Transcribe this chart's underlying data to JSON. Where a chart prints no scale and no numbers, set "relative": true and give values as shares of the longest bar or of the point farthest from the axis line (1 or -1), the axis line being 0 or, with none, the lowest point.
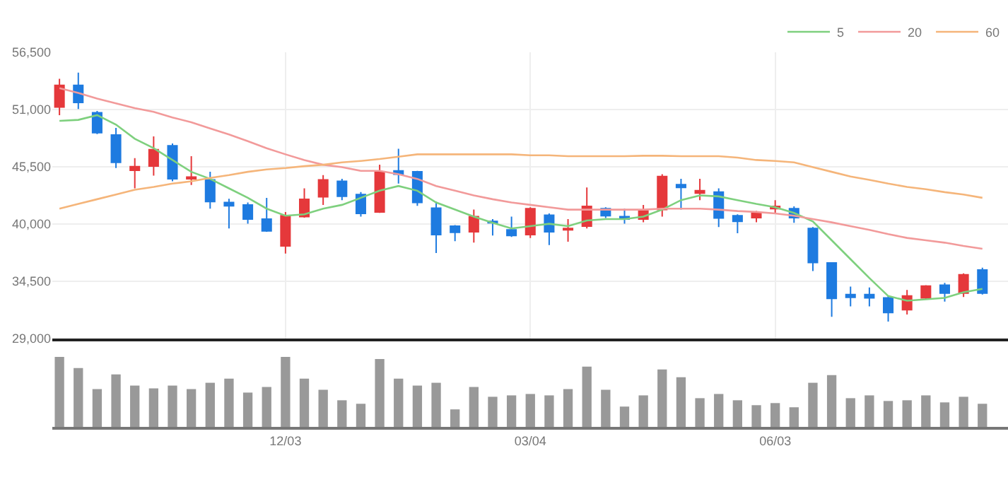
{
  "chart_data": [
    {
      "type": "candlestick",
      "categories": [
        null,
        null,
        null,
        null,
        null,
        null,
        null,
        null,
        null,
        null,
        null,
        null,
        null,
        null,
        null,
        null,
        null,
        null,
        null,
        null,
        null,
        null,
        null,
        null,
        null,
        null,
        null,
        null,
        null,
        null,
        null,
        null,
        null,
        null,
        null,
        null,
        null,
        null,
        null,
        null,
        null,
        null,
        null,
        null,
        null,
        null,
        null,
        null,
        null,
        null
      ],
      "ohlc": [
        [
          51233,
          53955,
          50462,
          53320
        ],
        [
          53320,
          54545,
          51050,
          51686
        ],
        [
          50688,
          50870,
          48647,
          48783
        ],
        [
          48556,
          49237,
          45380,
          45925
        ],
        [
          45154,
          46333,
          43430,
          45516
        ],
        [
          45562,
          48420,
          44654,
          47150
        ],
        [
          47512,
          47740,
          44110,
          44337
        ],
        [
          44337,
          46515,
          43748,
          44518
        ],
        [
          44246,
          45017,
          41478,
          42158
        ],
        [
          42068,
          42430,
          39573,
          41750
        ],
        [
          41841,
          42068,
          40026,
          40480
        ],
        [
          40480,
          42520,
          39255,
          39346
        ],
        [
          37894,
          41160,
          37168,
          40798
        ],
        [
          40707,
          43430,
          40617,
          42385
        ],
        [
          42612,
          44700,
          41840,
          44246
        ],
        [
          44110,
          44337,
          42295,
          42658
        ],
        [
          42840,
          43066,
          40707,
          41025
        ],
        [
          41160,
          45698,
          41070,
          45017
        ],
        [
          45108,
          47240,
          43883,
          44790
        ],
        [
          45017,
          45108,
          41750,
          42068
        ],
        [
          41524,
          42158,
          37214,
          38984
        ],
        [
          39800,
          39890,
          38348,
          39210
        ],
        [
          39255,
          41387,
          38212,
          40707
        ],
        [
          40253,
          40480,
          38892,
          40117
        ],
        [
          39437,
          40707,
          38757,
          38892
        ],
        [
          38984,
          41615,
          38666,
          41478
        ],
        [
          40843,
          41025,
          37984,
          39255
        ],
        [
          39437,
          40480,
          38303,
          39573
        ],
        [
          39800,
          43520,
          39573,
          41705
        ],
        [
          41478,
          41615,
          40571,
          40798
        ],
        [
          40707,
          41478,
          40026,
          40480
        ],
        [
          40480,
          41841,
          40162,
          41251
        ],
        [
          41387,
          44790,
          40707,
          44564
        ],
        [
          43793,
          44337,
          41387,
          43520
        ],
        [
          42975,
          44337,
          42295,
          43202
        ],
        [
          43066,
          43430,
          39709,
          40571
        ],
        [
          40798,
          40934,
          39119,
          40253
        ],
        [
          40616,
          41251,
          40162,
          41070
        ],
        [
          41478,
          42295,
          41024,
          41705
        ],
        [
          41478,
          41705,
          40117,
          40616
        ],
        [
          39573,
          39709,
          35489,
          36306
        ],
        [
          36261,
          36306,
          31088,
          32858
        ],
        [
          33222,
          33993,
          32087,
          32949
        ],
        [
          33222,
          33903,
          32087,
          32903
        ],
        [
          32903,
          33085,
          30634,
          31496
        ],
        [
          31768,
          33675,
          31315,
          33085
        ],
        [
          32903,
          34128,
          32767,
          34037
        ],
        [
          34128,
          34355,
          32540,
          33357
        ],
        [
          33357,
          35263,
          32994,
          35127
        ],
        [
          35580,
          35807,
          33221,
          33357
        ]
      ],
      "colors": [
        "#e5383b",
        "#1e7be0",
        "#1e7be0",
        "#1e7be0",
        "#e5383b",
        "#e5383b",
        "#1e7be0",
        "#e5383b",
        "#1e7be0",
        "#1e7be0",
        "#1e7be0",
        "#1e7be0",
        "#e5383b",
        "#e5383b",
        "#e5383b",
        "#1e7be0",
        "#1e7be0",
        "#e5383b",
        "#1e7be0",
        "#1e7be0",
        "#1e7be0",
        "#1e7be0",
        "#e5383b",
        "#1e7be0",
        "#1e7be0",
        "#e5383b",
        "#1e7be0",
        "#e5383b",
        "#e5383b",
        "#1e7be0",
        "#1e7be0",
        "#e5383b",
        "#e5383b",
        "#1e7be0",
        "#e5383b",
        "#1e7be0",
        "#1e7be0",
        "#e5383b",
        "#e5383b",
        "#1e7be0",
        "#1e7be0",
        "#1e7be0",
        "#1e7be0",
        "#1e7be0",
        "#1e7be0",
        "#e5383b",
        "#e5383b",
        "#1e7be0",
        "#e5383b",
        "#1e7be0"
      ],
      "series": [
        {
          "type": "line",
          "name": "5",
          "color": "#7ed07e",
          "values": [
            49917,
            50008,
            50462,
            49554,
            48194,
            47286,
            46151,
            45017,
            44337,
            43430,
            42522,
            41478,
            40798,
            40934,
            41478,
            41841,
            42522,
            43202,
            43656,
            43202,
            42068,
            41387,
            40707,
            40117,
            39573,
            39800,
            40026,
            39800,
            40344,
            40480,
            40480,
            40707,
            41387,
            42295,
            42748,
            42658,
            42295,
            41932,
            41614,
            41070,
            40253,
            38439,
            36624,
            34810,
            33085,
            32631,
            32767,
            32903,
            33448,
            33766
          ]
        },
        {
          "type": "line",
          "name": "20",
          "color": "#f29a9a",
          "values": [
            53047,
            52594,
            52050,
            51596,
            51142,
            50779,
            50235,
            49781,
            49191,
            48601,
            47966,
            47286,
            46696,
            46151,
            45697,
            45471,
            45108,
            45108,
            44790,
            44337,
            43656,
            43202,
            42748,
            42385,
            42068,
            41841,
            41614,
            41387,
            41387,
            41387,
            41387,
            41387,
            41478,
            41478,
            41478,
            41387,
            41251,
            41160,
            41024,
            40798,
            40480,
            40162,
            39800,
            39437,
            39029,
            38666,
            38439,
            38212,
            37894,
            37622
          ]
        },
        {
          "type": "line",
          "name": "60",
          "color": "#f5b57a",
          "values": [
            41478,
            41932,
            42385,
            42839,
            43293,
            43565,
            43883,
            44110,
            44427,
            44700,
            45017,
            45244,
            45380,
            45561,
            45697,
            45925,
            46061,
            46242,
            46469,
            46696,
            46696,
            46696,
            46696,
            46696,
            46696,
            46605,
            46605,
            46515,
            46515,
            46515,
            46515,
            46560,
            46560,
            46515,
            46515,
            46515,
            46378,
            46151,
            46061,
            45925,
            45471,
            45017,
            44564,
            44246,
            43883,
            43565,
            43339,
            43066,
            42839,
            42522
          ]
        }
      ],
      "ylim": [
        29000,
        56500
      ],
      "yticks": [
        {
          "value": 29000,
          "label": "29,000"
        },
        {
          "value": 34500,
          "label": "34,500"
        },
        {
          "value": 40000,
          "label": "40,000"
        },
        {
          "value": 45500,
          "label": "45,500"
        },
        {
          "value": 51000,
          "label": "51,000"
        },
        {
          "value": 56500,
          "label": "56,500"
        }
      ],
      "grid": true,
      "legend": "top right",
      "tick_labels": "y"
    },
    {
      "type": "bar",
      "categories": [
        null,
        null,
        null,
        null,
        null,
        null,
        null,
        null,
        null,
        null,
        null,
        null,
        "12/03",
        null,
        null,
        null,
        null,
        null,
        null,
        null,
        null,
        null,
        null,
        null,
        null,
        "03/04",
        null,
        null,
        null,
        null,
        null,
        null,
        null,
        null,
        null,
        null,
        null,
        null,
        "06/03",
        null,
        null,
        null,
        null,
        null,
        null,
        null,
        null,
        null,
        null,
        null
      ],
      "values": [
        1.0,
        0.84,
        0.54,
        0.75,
        0.59,
        0.55,
        0.59,
        0.54,
        0.63,
        0.69,
        0.49,
        0.57,
        1.0,
        0.69,
        0.53,
        0.38,
        0.33,
        0.97,
        0.69,
        0.59,
        0.63,
        0.25,
        0.57,
        0.43,
        0.45,
        0.47,
        0.45,
        0.54,
        0.86,
        0.53,
        0.29,
        0.45,
        0.82,
        0.71,
        0.41,
        0.47,
        0.38,
        0.31,
        0.34,
        0.28,
        0.63,
        0.74,
        0.41,
        0.45,
        0.37,
        0.38,
        0.45,
        0.35,
        0.43,
        0.33
      ],
      "color": "#999999",
      "relative": true,
      "tick_labels": "x"
    }
  ]
}
